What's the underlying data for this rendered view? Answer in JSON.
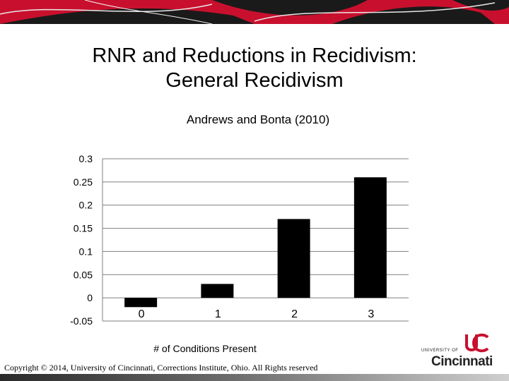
{
  "slide": {
    "title_line1": "RNR and Reductions in Recidivism:",
    "title_line2": "General Recidivism"
  },
  "chart_data": {
    "type": "bar",
    "title": "Andrews and Bonta (2010)",
    "xlabel": "# of Conditions Present",
    "ylabel": "",
    "categories": [
      "0",
      "1",
      "2",
      "3"
    ],
    "values": [
      -0.02,
      0.03,
      0.17,
      0.26
    ],
    "ylim": [
      -0.05,
      0.3
    ],
    "yticks": [
      "0.3",
      "0.25",
      "0.2",
      "0.15",
      "0.1",
      "0.05",
      "0",
      "-0.05"
    ],
    "grid": true,
    "bar_color": "#000000",
    "grid_color": "#7f7f7f"
  },
  "footer": {
    "copyright": "Copyright © 2014, University of Cincinnati, Corrections Institute, Ohio. All Rights reserved"
  },
  "logo": {
    "top_text": "UNIVERSITY OF",
    "main_text": "Cincinnati",
    "accent_color": "#c8102e"
  },
  "colors": {
    "banner_red": "#c8102e",
    "banner_dark": "#1a1a1a"
  }
}
